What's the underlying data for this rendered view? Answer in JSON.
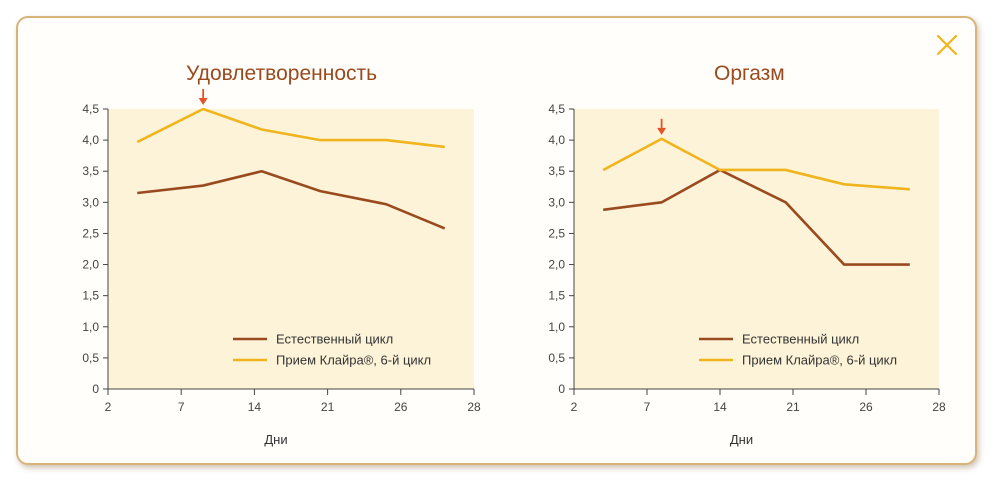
{
  "colors": {
    "plot_bg": "#fdf3d8",
    "natural": "#9a4a1f",
    "qlaira": "#f0b41c",
    "arrow": "#e5532a",
    "axis": "#444444",
    "frame": "#d8b47a",
    "close": "#f0b41c"
  },
  "close_icon": "close-icon",
  "chart_data": [
    {
      "type": "line",
      "title": "Удовлетворенность",
      "xlabel": "Дни",
      "ylabel": "",
      "xticks": [
        "2",
        "7",
        "14",
        "21",
        "26",
        "28"
      ],
      "yticks": [
        "0",
        "0,5",
        "1,0",
        "1,5",
        "2,0",
        "2,5",
        "3,0",
        "3,5",
        "4,0",
        "4,5"
      ],
      "ylim": [
        0,
        4.5
      ],
      "grid": false,
      "legend_position": "bottom-right",
      "x_positions": [
        0.4,
        1.3,
        2.1,
        2.9,
        3.8,
        4.6
      ],
      "series": [
        {
          "name": "Естественный цикл",
          "values": [
            3.15,
            3.27,
            3.5,
            3.18,
            2.97,
            2.58
          ]
        },
        {
          "name": "Прием Клайра®, 6-й цикл",
          "values": [
            3.97,
            4.5,
            4.17,
            4.0,
            4.0,
            3.89
          ]
        }
      ],
      "annotation": {
        "type": "arrow",
        "series": 1,
        "point": 1
      }
    },
    {
      "type": "line",
      "title": "Оргазм",
      "xlabel": "Дни",
      "ylabel": "",
      "xticks": [
        "2",
        "7",
        "14",
        "21",
        "26",
        "28"
      ],
      "yticks": [
        "0",
        "0,5",
        "1,0",
        "1,5",
        "2,0",
        "2,5",
        "3,0",
        "3,5",
        "4,0",
        "4,5"
      ],
      "ylim": [
        0,
        4.5
      ],
      "grid": false,
      "legend_position": "bottom-right",
      "x_positions": [
        0.4,
        1.2,
        2.0,
        2.9,
        3.7,
        4.6
      ],
      "series": [
        {
          "name": "Естественный цикл",
          "values": [
            2.88,
            3.0,
            3.52,
            3.0,
            2.0,
            2.0
          ]
        },
        {
          "name": "Прием Клайра®, 6-й цикл",
          "values": [
            3.52,
            4.02,
            3.52,
            3.52,
            3.29,
            3.21
          ]
        }
      ],
      "annotation": {
        "type": "arrow",
        "series": 1,
        "point": 1
      }
    }
  ]
}
